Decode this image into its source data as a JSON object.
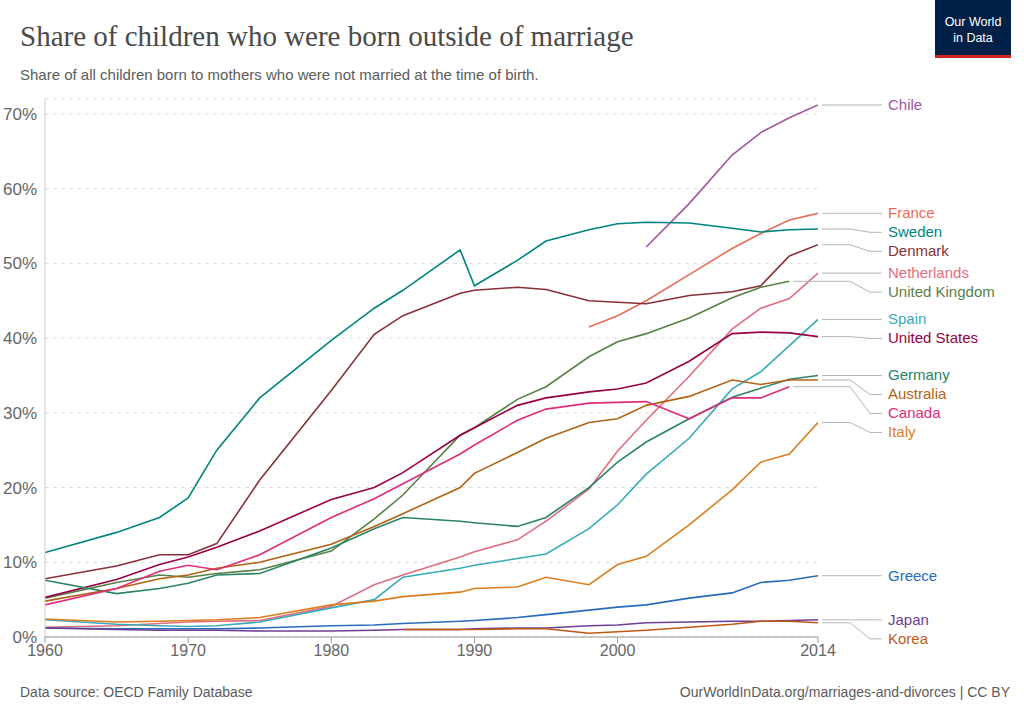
{
  "chart_data": {
    "type": "line",
    "title": "Share of children who were born outside of marriage",
    "subtitle": "Share of all children born to mothers who were not married at the time of birth.",
    "source": "Data source: OECD Family Database",
    "url": "OurWorldInData.org/marriages-and-divorces | CC BY",
    "logo": "Our World in Data",
    "x": [
      1960,
      1965,
      1968,
      1970,
      1972,
      1975,
      1980,
      1983,
      1985,
      1989,
      1990,
      1993,
      1995,
      1998,
      2000,
      2002,
      2005,
      2008,
      2010,
      2012,
      2014
    ],
    "xlim": [
      1960,
      2014
    ],
    "xticks": [
      1960,
      1970,
      1980,
      1990,
      2000,
      2014
    ],
    "ylim": [
      0,
      72
    ],
    "yticks": [
      {
        "value": 0,
        "label": "0%"
      },
      {
        "value": 10,
        "label": "10%"
      },
      {
        "value": 20,
        "label": "20%"
      },
      {
        "value": 30,
        "label": "30%"
      },
      {
        "value": 40,
        "label": "40%"
      },
      {
        "value": 50,
        "label": "50%"
      },
      {
        "value": 60,
        "label": "60%"
      },
      {
        "value": 70,
        "label": "70%"
      }
    ],
    "grid": true,
    "series": [
      {
        "name": "Chile",
        "color": "#a2559c",
        "values": [
          null,
          null,
          null,
          null,
          null,
          null,
          null,
          null,
          null,
          null,
          null,
          null,
          null,
          null,
          null,
          52.2,
          58,
          64.5,
          67.5,
          69.5,
          71.2
        ]
      },
      {
        "name": "France",
        "color": "#e56e5a",
        "values": [
          null,
          null,
          null,
          null,
          null,
          null,
          null,
          null,
          null,
          null,
          null,
          null,
          null,
          41.5,
          43,
          45,
          48.5,
          52,
          54,
          55.8,
          56.7
        ]
      },
      {
        "name": "Sweden",
        "color": "#00847e",
        "values": [
          11.3,
          14,
          16,
          18.6,
          25,
          32,
          39.7,
          44,
          46.4,
          51.8,
          47,
          50.4,
          53,
          54.5,
          55.3,
          55.5,
          55.4,
          54.7,
          54.2,
          54.5,
          54.6
        ]
      },
      {
        "name": "Denmark",
        "color": "#883039",
        "values": [
          7.8,
          9.5,
          11,
          11,
          12.5,
          21,
          33,
          40.5,
          43,
          46,
          46.4,
          46.8,
          46.5,
          45,
          44.8,
          44.6,
          45.7,
          46.2,
          47,
          51,
          52.5
        ]
      },
      {
        "name": "Netherlands",
        "color": "#e26c80",
        "values": [
          1.3,
          1.5,
          1.8,
          2,
          2.1,
          2.2,
          4.1,
          7,
          8.3,
          10.7,
          11.4,
          13,
          15.5,
          19.8,
          24.9,
          29,
          34.9,
          41.2,
          44,
          45.3,
          48.7
        ]
      },
      {
        "name": "United Kingdom",
        "color": "#578145",
        "values": [
          5.2,
          7.3,
          8.3,
          8,
          8.5,
          9,
          11.5,
          15.8,
          19,
          27,
          28,
          31.8,
          33.5,
          37.5,
          39.5,
          40.6,
          42.7,
          45.4,
          46.8,
          47.6,
          null
        ]
      },
      {
        "name": "Spain",
        "color": "#38aaba",
        "values": [
          2.3,
          1.7,
          1.5,
          1.4,
          1.5,
          2,
          3.9,
          5,
          8,
          9.2,
          9.6,
          10.5,
          11.1,
          14.5,
          17.7,
          21.8,
          26.6,
          33.2,
          35.5,
          39,
          42.5
        ]
      },
      {
        "name": "United States",
        "color": "#970046",
        "values": [
          5.3,
          7.7,
          9.7,
          10.7,
          12,
          14.2,
          18.4,
          20,
          22,
          27,
          28,
          31,
          32,
          32.8,
          33.2,
          34,
          36.9,
          40.6,
          40.8,
          40.7,
          40.2
        ]
      },
      {
        "name": "Germany",
        "color": "#2c8465",
        "values": [
          7.6,
          5.8,
          6.5,
          7.2,
          8.3,
          8.5,
          11.9,
          14.5,
          16,
          15.5,
          15.3,
          14.8,
          16,
          20,
          23.4,
          26.1,
          29.2,
          32.1,
          33.3,
          34.5,
          35
        ]
      },
      {
        "name": "Australia",
        "color": "#b16214",
        "values": [
          4.8,
          6.5,
          7.8,
          8.3,
          9.2,
          10,
          12.4,
          14.8,
          16.5,
          20,
          21.9,
          24.7,
          26.6,
          28.7,
          29.2,
          31,
          32.2,
          34.4,
          33.8,
          34.4,
          34.4
        ]
      },
      {
        "name": "Canada",
        "color": "#e02d7a",
        "values": [
          4.3,
          6.5,
          8.8,
          9.6,
          9,
          11,
          16,
          18.5,
          20.5,
          24.5,
          25.7,
          29,
          30.5,
          31.3,
          31.4,
          31.5,
          29.2,
          32,
          32,
          33.5,
          null
        ]
      },
      {
        "name": "Italy",
        "color": "#dc7d1f",
        "values": [
          2.4,
          2,
          2.1,
          2.2,
          2.3,
          2.6,
          4.3,
          4.8,
          5.4,
          6,
          6.5,
          6.7,
          8,
          7,
          9.7,
          10.8,
          15,
          19.7,
          23.4,
          24.5,
          28.7
        ]
      },
      {
        "name": "Greece",
        "color": "#286bbb",
        "values": [
          1.2,
          1.1,
          1.1,
          1.1,
          1.1,
          1.2,
          1.5,
          1.6,
          1.8,
          2.1,
          2.2,
          2.6,
          3,
          3.6,
          4,
          4.3,
          5.2,
          5.9,
          7.3,
          7.6,
          8.2
        ]
      },
      {
        "name": "Japan",
        "color": "#6d3e91",
        "values": [
          1.2,
          1,
          0.9,
          0.9,
          0.9,
          0.8,
          0.8,
          0.9,
          1,
          1,
          1.1,
          1.2,
          1.2,
          1.5,
          1.6,
          1.9,
          2,
          2.1,
          2.1,
          2.2,
          2.3
        ]
      },
      {
        "name": "Korea",
        "color": "#be5915",
        "values": [
          null,
          null,
          null,
          null,
          null,
          null,
          null,
          null,
          1,
          1,
          1,
          1.1,
          1.1,
          0.5,
          0.7,
          0.9,
          1.3,
          1.7,
          2.1,
          2.1,
          1.9
        ]
      }
    ]
  }
}
